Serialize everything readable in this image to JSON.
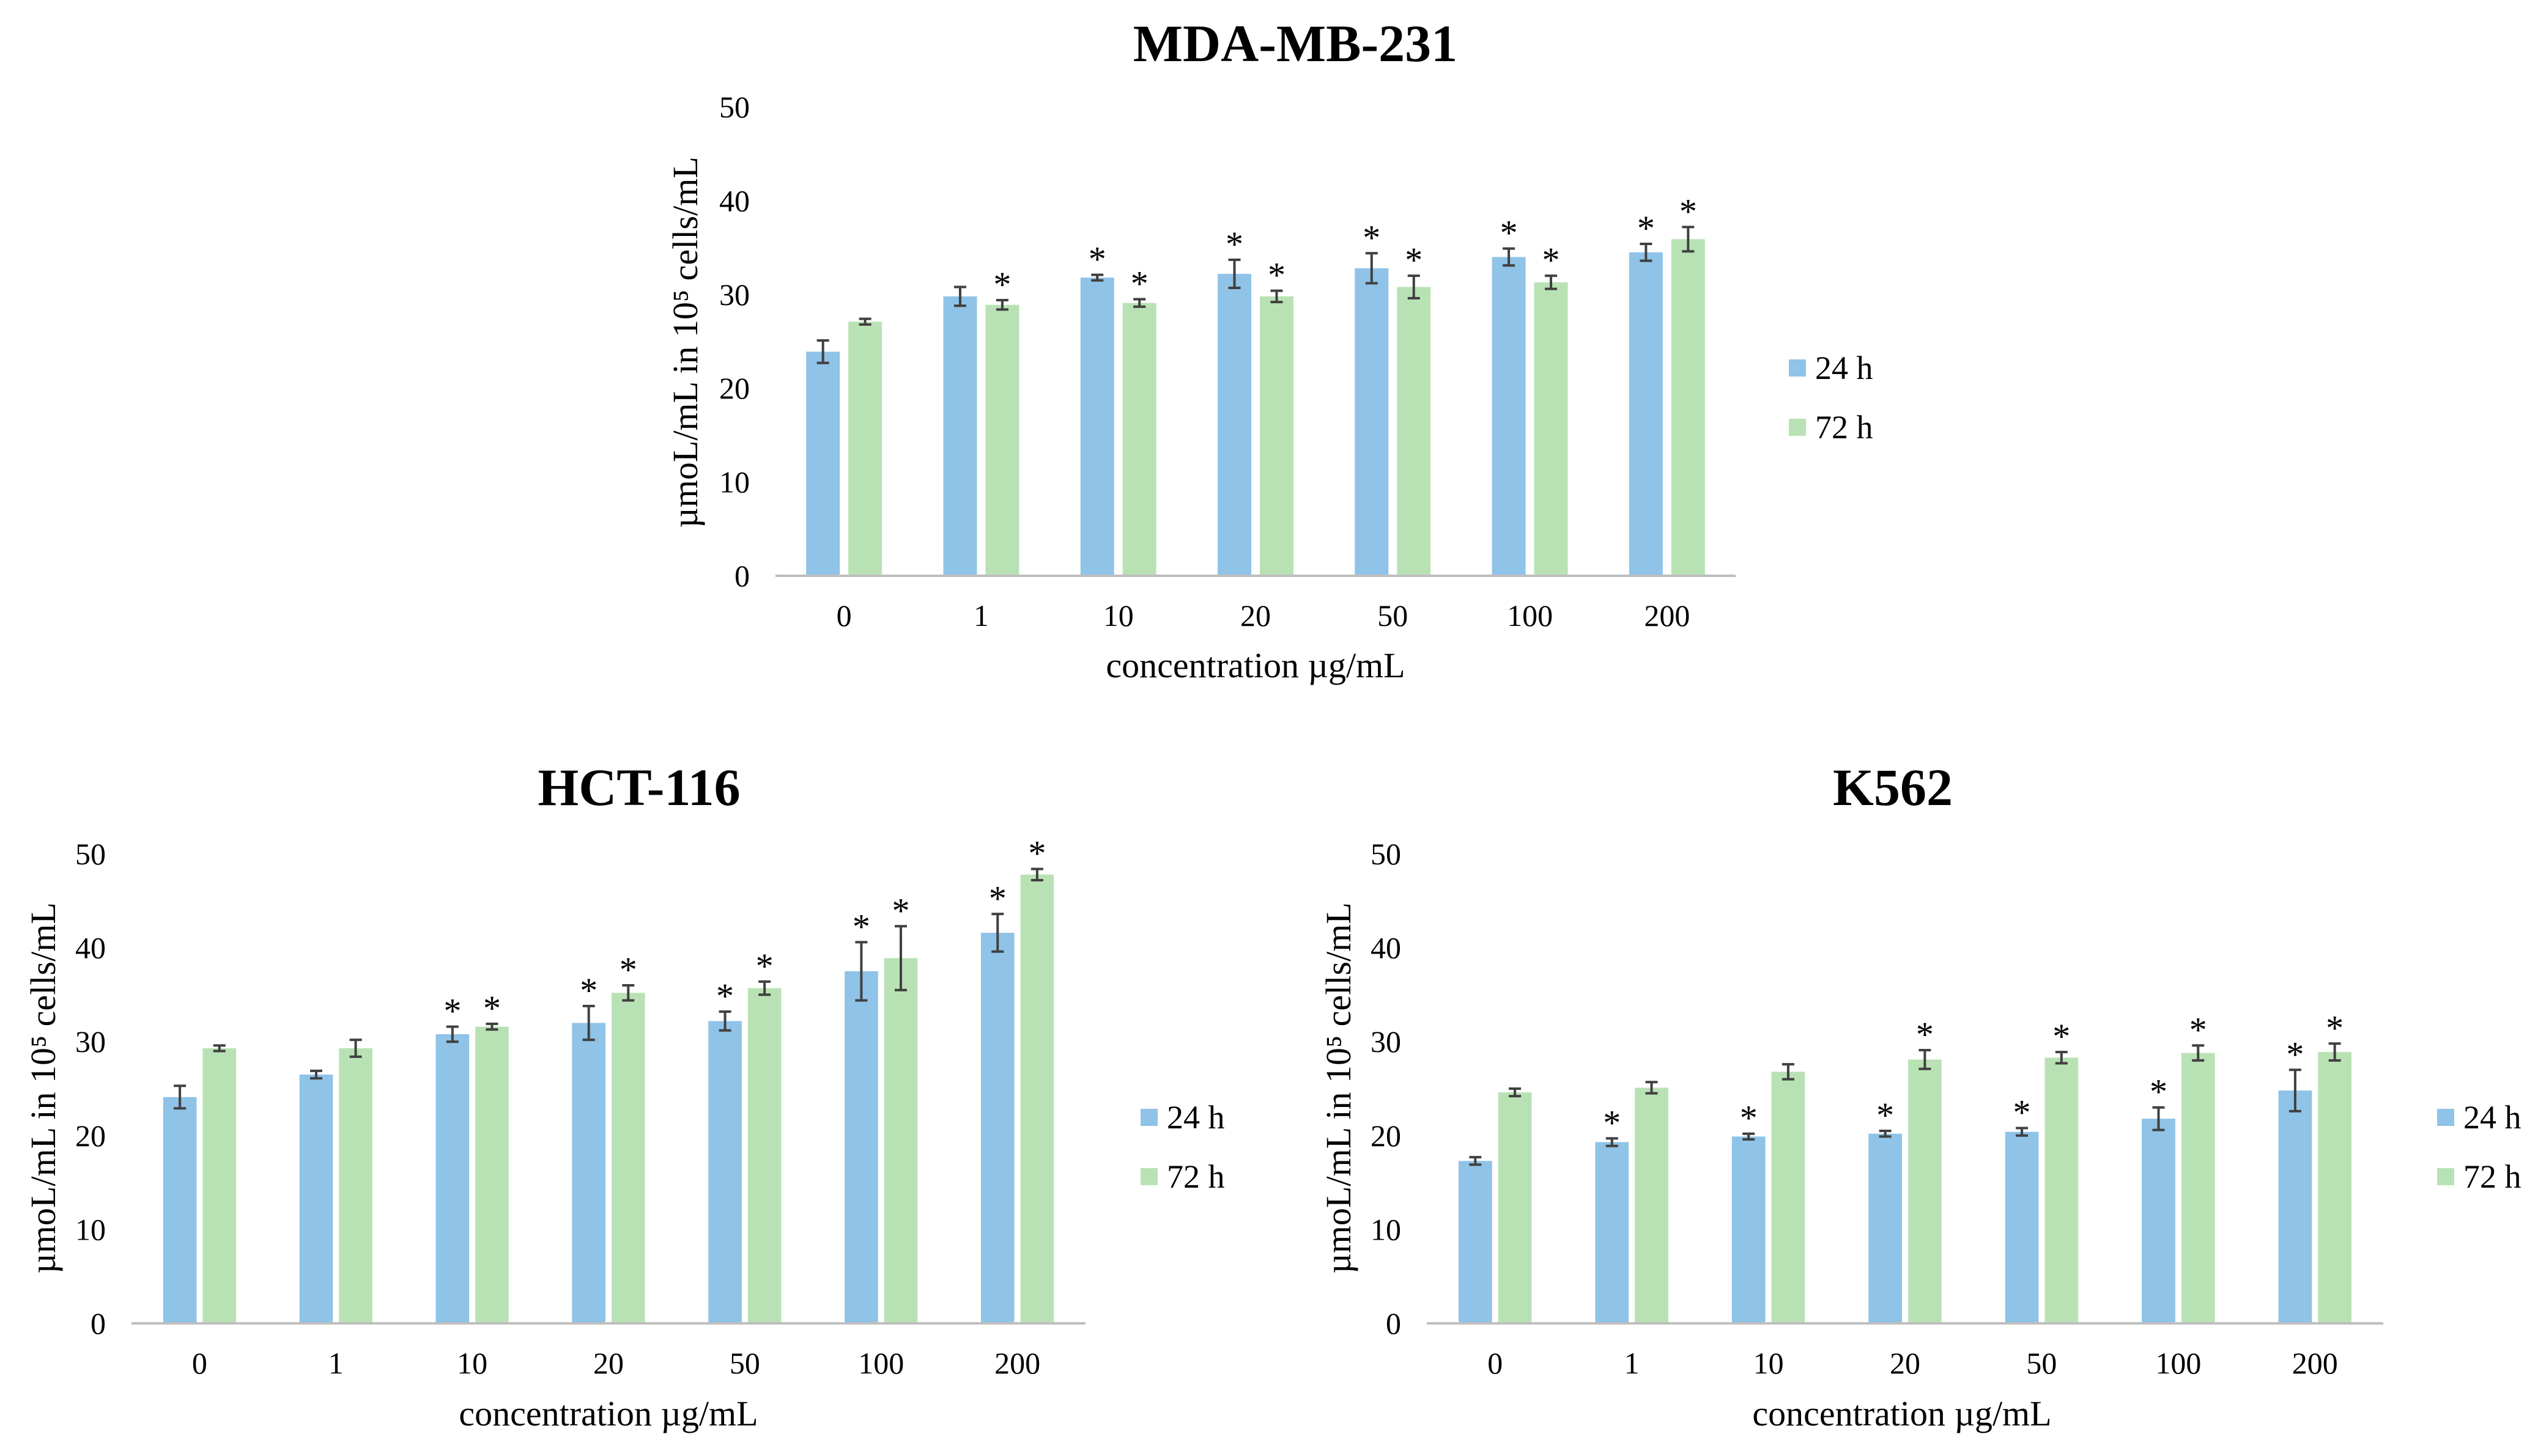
{
  "colors": {
    "series_24h": "#8FC3E8",
    "series_72h": "#B9E2B4",
    "axis": "#BFBFBF",
    "error_bar": "#404040",
    "text": "#000000"
  },
  "chart_data": [
    {
      "type": "bar",
      "title": "MDA-MB-231",
      "xlabel": "concentration µg/mL",
      "ylabel": "µmoL/mL in 10⁵ cells/mL",
      "ylim": [
        0,
        50
      ],
      "yticks": [
        0,
        10,
        20,
        30,
        40,
        50
      ],
      "grid": false,
      "legend_position": "right",
      "categories": [
        "0",
        "1",
        "10",
        "20",
        "50",
        "100",
        "200"
      ],
      "series": [
        {
          "name": "24 h",
          "values": [
            23.9,
            29.8,
            31.8,
            32.2,
            32.8,
            34.0,
            34.5
          ],
          "errors": [
            1.2,
            1.0,
            0.3,
            1.5,
            1.6,
            0.9,
            0.9
          ],
          "significant": [
            false,
            false,
            true,
            true,
            true,
            true,
            true
          ]
        },
        {
          "name": "72 h",
          "values": [
            27.1,
            28.9,
            29.1,
            29.8,
            30.8,
            31.3,
            35.9
          ],
          "errors": [
            0.3,
            0.5,
            0.4,
            0.6,
            1.2,
            0.7,
            1.3
          ],
          "significant": [
            false,
            true,
            true,
            true,
            true,
            true,
            true
          ]
        }
      ],
      "annotation_symbol": "*"
    },
    {
      "type": "bar",
      "title": "HCT-116",
      "xlabel": "concentration µg/mL",
      "ylabel": "µmoL/mL in 10⁵ cells/mL",
      "ylim": [
        0,
        50
      ],
      "yticks": [
        0,
        10,
        20,
        30,
        40,
        50
      ],
      "grid": false,
      "legend_position": "right",
      "categories": [
        "0",
        "1",
        "10",
        "20",
        "50",
        "100",
        "200"
      ],
      "series": [
        {
          "name": "24 h",
          "values": [
            24.1,
            26.5,
            30.8,
            32.0,
            32.2,
            37.5,
            41.6
          ],
          "errors": [
            1.2,
            0.4,
            0.8,
            1.8,
            1.0,
            3.1,
            2.0
          ],
          "significant": [
            false,
            false,
            true,
            true,
            true,
            true,
            true
          ]
        },
        {
          "name": "72 h",
          "values": [
            29.3,
            29.3,
            31.6,
            35.2,
            35.7,
            38.9,
            47.8
          ],
          "errors": [
            0.3,
            0.9,
            0.3,
            0.8,
            0.7,
            3.4,
            0.6
          ],
          "significant": [
            false,
            false,
            true,
            true,
            true,
            true,
            true
          ]
        }
      ],
      "annotation_symbol": "*"
    },
    {
      "type": "bar",
      "title": "K562",
      "xlabel": "concentration µg/mL",
      "ylabel": "µmoL/mL in 10⁵ cells/mL",
      "ylim": [
        0,
        50
      ],
      "yticks": [
        0,
        10,
        20,
        30,
        40,
        50
      ],
      "grid": false,
      "legend_position": "right",
      "categories": [
        "0",
        "1",
        "10",
        "20",
        "50",
        "100",
        "200"
      ],
      "series": [
        {
          "name": "24 h",
          "values": [
            17.3,
            19.3,
            19.9,
            20.2,
            20.4,
            21.8,
            24.8
          ],
          "errors": [
            0.4,
            0.4,
            0.3,
            0.3,
            0.4,
            1.2,
            2.2
          ],
          "significant": [
            false,
            true,
            true,
            true,
            true,
            true,
            true
          ]
        },
        {
          "name": "72 h",
          "values": [
            24.6,
            25.1,
            26.8,
            28.1,
            28.3,
            28.8,
            28.9
          ],
          "errors": [
            0.4,
            0.6,
            0.8,
            1.0,
            0.6,
            0.8,
            0.9
          ],
          "significant": [
            false,
            false,
            false,
            true,
            true,
            true,
            true
          ]
        }
      ],
      "annotation_symbol": "*"
    }
  ]
}
